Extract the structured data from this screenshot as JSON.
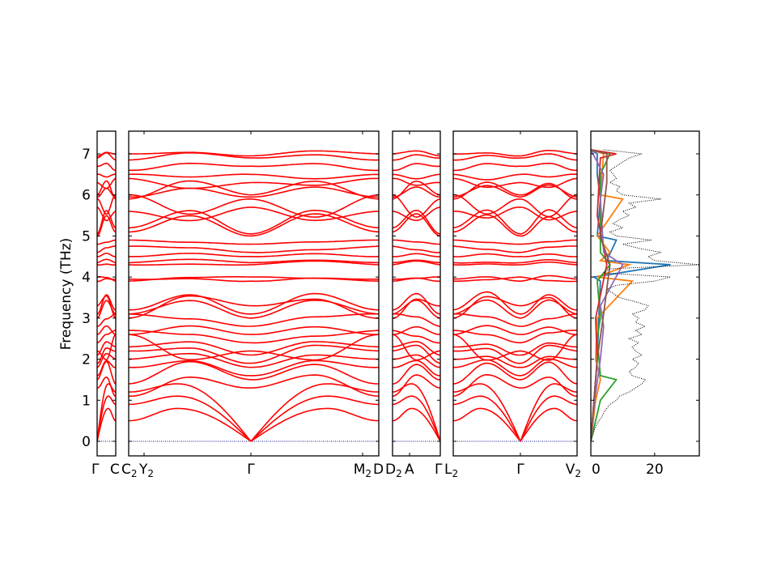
{
  "chart_data": {
    "type": "line",
    "title": "",
    "ylabel": "Frequency (THz)",
    "ylim": [
      -0.35,
      7.55
    ],
    "yticks": [
      0,
      1,
      2,
      3,
      4,
      5,
      6,
      7
    ],
    "band_color": "#ff0000",
    "zero_line_color": "#00008b",
    "panels": [
      {
        "name": "gamma-c",
        "kpoints": [
          {
            "label": "Γ",
            "sub": ""
          },
          {
            "label": "C",
            "sub": ""
          }
        ]
      },
      {
        "name": "c2-y2-gamma-m2-d",
        "kpoints": [
          {
            "label": "C",
            "sub": "2"
          },
          {
            "label": "Y",
            "sub": "2"
          },
          {
            "label": "Γ",
            "sub": ""
          },
          {
            "label": "M",
            "sub": "2"
          },
          {
            "label": "D",
            "sub": ""
          }
        ]
      },
      {
        "name": "d2-a-gamma",
        "kpoints": [
          {
            "label": "D",
            "sub": "2"
          },
          {
            "label": "A",
            "sub": ""
          },
          {
            "label": "Γ",
            "sub": ""
          }
        ]
      },
      {
        "name": "l2-gamma-v2",
        "kpoints": [
          {
            "label": "L",
            "sub": "2"
          },
          {
            "label": "Γ",
            "sub": ""
          },
          {
            "label": "V",
            "sub": "2"
          }
        ]
      }
    ],
    "bands_note": "each band: frequency (THz) at Γ, mid-zone, zone boundary",
    "bands": [
      {
        "acoustic": true,
        "f": [
          0,
          0.8,
          0.5
        ]
      },
      {
        "acoustic": true,
        "f": [
          0,
          1.1,
          0.9
        ]
      },
      {
        "acoustic": true,
        "f": [
          0,
          1.4,
          1.2
        ]
      },
      {
        "f": [
          1.3,
          1.6,
          1.1
        ]
      },
      {
        "f": [
          1.5,
          1.9,
          1.4
        ]
      },
      {
        "f": [
          1.6,
          2.0,
          1.8
        ]
      },
      {
        "f": [
          1.8,
          2.1,
          2.0
        ]
      },
      {
        "f": [
          1.9,
          2.3,
          2.2
        ]
      },
      {
        "f": [
          2.1,
          2.4,
          2.3
        ]
      },
      {
        "f": [
          2.2,
          2.0,
          2.6
        ]
      },
      {
        "f": [
          2.4,
          2.6,
          2.7
        ]
      },
      {
        "f": [
          2.6,
          2.8,
          2.6
        ]
      },
      {
        "f": [
          2.8,
          3.0,
          3.1
        ]
      },
      {
        "f": [
          3.0,
          3.4,
          3.1
        ]
      },
      {
        "f": [
          3.1,
          3.6,
          3.2
        ]
      },
      {
        "f": [
          3.3,
          3.5,
          3.0
        ]
      },
      {
        "f": [
          3.9,
          4.0,
          3.95
        ]
      },
      {
        "f": [
          4.0,
          3.95,
          3.9
        ]
      },
      {
        "f": [
          4.3,
          4.35,
          4.3
        ]
      },
      {
        "f": [
          4.35,
          4.4,
          4.35
        ]
      },
      {
        "f": [
          4.5,
          4.6,
          4.5
        ]
      },
      {
        "f": [
          4.6,
          4.7,
          4.75
        ]
      },
      {
        "f": [
          4.8,
          4.85,
          4.9
        ]
      },
      {
        "f": [
          5.0,
          5.5,
          5.1
        ]
      },
      {
        "f": [
          5.05,
          5.6,
          5.2
        ]
      },
      {
        "f": [
          5.7,
          5.4,
          5.6
        ]
      },
      {
        "f": [
          5.9,
          5.5,
          6.0
        ]
      },
      {
        "f": [
          5.95,
          6.2,
          5.95
        ]
      },
      {
        "f": [
          6.0,
          6.3,
          5.9
        ]
      },
      {
        "f": [
          6.3,
          6.2,
          6.4
        ]
      },
      {
        "f": [
          6.5,
          6.4,
          6.5
        ]
      },
      {
        "f": [
          6.7,
          6.8,
          6.6
        ]
      },
      {
        "f": [
          6.9,
          7.0,
          6.85
        ]
      },
      {
        "f": [
          6.95,
          7.05,
          7.0
        ]
      }
    ],
    "dos": {
      "xlim": [
        0,
        34
      ],
      "xticks": [
        0,
        20
      ],
      "freq_step": 0.1,
      "total": [
        0,
        0.3,
        0.8,
        1.2,
        1.8,
        2.5,
        3.5,
        4,
        5,
        6,
        8,
        9,
        12,
        14,
        16,
        17,
        13,
        12,
        14,
        15,
        13,
        16,
        14,
        13,
        15,
        12,
        16,
        14,
        17,
        14,
        15,
        13,
        17,
        18,
        14,
        9,
        7,
        5,
        8,
        20,
        25,
        4,
        6,
        34,
        20,
        18,
        22,
        15,
        10,
        19,
        8,
        6,
        10,
        7,
        9,
        12,
        10,
        14,
        12,
        22,
        10,
        8,
        9,
        6,
        8,
        7,
        6,
        8,
        10,
        12,
        16,
        4
      ],
      "total_color": "#000000",
      "partials": [
        {
          "color": "#1f77b4",
          "points": [
            [
              0,
              0
            ],
            [
              1,
              1
            ],
            [
              2,
              2
            ],
            [
              3,
              2.5
            ],
            [
              3.9,
              3
            ],
            [
              4.0,
              1
            ],
            [
              4.3,
              25
            ],
            [
              4.4,
              5
            ],
            [
              4.9,
              8
            ],
            [
              5.0,
              2
            ],
            [
              5.9,
              3
            ],
            [
              6.5,
              2
            ],
            [
              7.0,
              2
            ],
            [
              7.1,
              0
            ]
          ]
        },
        {
          "color": "#ff7f0e",
          "points": [
            [
              0,
              0
            ],
            [
              1,
              1.5
            ],
            [
              1.5,
              3
            ],
            [
              2,
              1.5
            ],
            [
              3,
              2
            ],
            [
              3.9,
              13
            ],
            [
              4.0,
              2
            ],
            [
              4.3,
              12
            ],
            [
              4.4,
              3
            ],
            [
              4.6,
              6
            ],
            [
              5.0,
              2
            ],
            [
              5.9,
              10
            ],
            [
              6.0,
              3
            ],
            [
              7.0,
              4
            ],
            [
              7.1,
              0
            ]
          ]
        },
        {
          "color": "#2ca02c",
          "points": [
            [
              0,
              0
            ],
            [
              1,
              3
            ],
            [
              1.5,
              8
            ],
            [
              1.6,
              3
            ],
            [
              2.5,
              2
            ],
            [
              3.0,
              3
            ],
            [
              3.9,
              2
            ],
            [
              4.3,
              6
            ],
            [
              4.6,
              3
            ],
            [
              5.5,
              3
            ],
            [
              6.5,
              3
            ],
            [
              7.0,
              6
            ],
            [
              7.1,
              0
            ]
          ]
        },
        {
          "color": "#d62728",
          "points": [
            [
              0,
              0
            ],
            [
              1,
              1
            ],
            [
              2,
              2
            ],
            [
              3,
              1.5
            ],
            [
              4.3,
              5
            ],
            [
              5.5,
              2
            ],
            [
              6.9,
              3
            ],
            [
              7.0,
              8
            ],
            [
              7.1,
              0
            ]
          ]
        },
        {
          "color": "#9467bd",
          "points": [
            [
              0,
              0
            ],
            [
              1,
              1.2
            ],
            [
              2,
              3
            ],
            [
              2.8,
              4
            ],
            [
              3.3,
              3
            ],
            [
              4.3,
              10
            ],
            [
              4.6,
              4
            ],
            [
              5.9,
              3
            ],
            [
              6.5,
              4
            ],
            [
              7.1,
              0
            ]
          ]
        },
        {
          "color": "#8c564b",
          "points": [
            [
              0,
              0
            ],
            [
              1,
              1
            ],
            [
              2,
              2
            ],
            [
              3.1,
              4
            ],
            [
              4.3,
              6
            ],
            [
              5.0,
              3
            ],
            [
              6.3,
              5
            ],
            [
              7.0,
              5
            ],
            [
              7.1,
              0
            ]
          ]
        }
      ]
    }
  }
}
